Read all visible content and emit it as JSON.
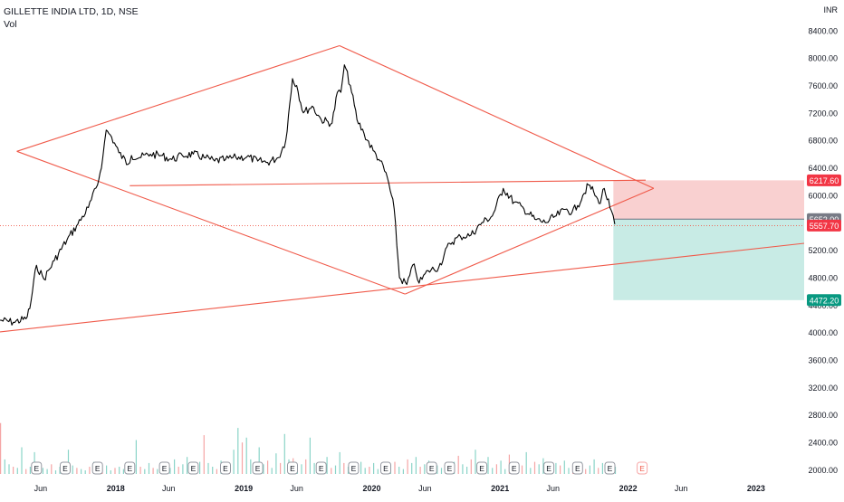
{
  "header": {
    "symbol": "GILLETTE INDIA LTD, 1D, NSE",
    "volume_label": "Vol"
  },
  "colors": {
    "candles": "#000000",
    "trendline": "#f05a4a",
    "price_line": "#f05a4a",
    "stop_zone": "#f9d0d0",
    "target_zone": "#c8ebe5",
    "stop_tag": "#f23645",
    "target_tag": "#089981",
    "entry_tag": "#787b86",
    "volume_up": "#8ad4c8",
    "volume_down": "#f5a5a5"
  },
  "chart_data": {
    "type": "line",
    "title": "GILLETTE INDIA LTD, 1D, NSE",
    "currency": "INR",
    "price_axis": {
      "ticks": [
        8400,
        8000,
        7600,
        7200,
        6800,
        6400,
        6000,
        5600,
        5200,
        4800,
        4400,
        4000,
        3600,
        3200,
        2800,
        2400,
        2000
      ],
      "ylim": [
        1860,
        8740
      ],
      "grid": false
    },
    "time_axis": {
      "ticks": [
        "Jun",
        "2018",
        "Jun",
        "2019",
        "Jun",
        "2020",
        "Jun",
        "2021",
        "Jun",
        "2022",
        "Jun",
        "2023"
      ],
      "tick_dates": [
        "2017-06-01",
        "2018-01-01",
        "2018-06-01",
        "2019-01-01",
        "2019-06-01",
        "2020-01-01",
        "2020-06-01",
        "2021-01-01",
        "2021-06-01",
        "2022-01-01",
        "2022-06-01",
        "2023-01-01"
      ],
      "xlim": [
        "2017-02-05",
        "2023-05-18"
      ]
    },
    "series": [
      {
        "name": "",
        "type": "line",
        "x": [
          "2017-02-05",
          "2017-03-15",
          "2017-04-20",
          "2017-05-01",
          "2017-05-20",
          "2017-06-10",
          "2017-07-10",
          "2017-08-15",
          "2017-09-15",
          "2017-10-15",
          "2017-11-10",
          "2017-11-25",
          "2017-12-05",
          "2017-12-20",
          "2018-01-10",
          "2018-02-05",
          "2018-02-15",
          "2018-03-10",
          "2018-04-10",
          "2018-05-10",
          "2018-06-10",
          "2018-07-10",
          "2018-08-10",
          "2018-09-10",
          "2018-10-10",
          "2018-11-10",
          "2018-12-10",
          "2019-01-10",
          "2019-02-10",
          "2019-03-10",
          "2019-04-10",
          "2019-05-01",
          "2019-05-20",
          "2019-06-01",
          "2019-06-20",
          "2019-07-15",
          "2019-08-10",
          "2019-09-10",
          "2019-09-25",
          "2019-10-05",
          "2019-10-15",
          "2019-11-01",
          "2019-11-20",
          "2019-12-10",
          "2020-01-05",
          "2020-01-25",
          "2020-02-15",
          "2020-03-05",
          "2020-03-20",
          "2020-04-10",
          "2020-05-01",
          "2020-05-15",
          "2020-06-10",
          "2020-07-10",
          "2020-08-10",
          "2020-09-10",
          "2020-10-10",
          "2020-11-10",
          "2020-12-10",
          "2021-01-10",
          "2021-02-10",
          "2021-03-10",
          "2021-04-10",
          "2021-05-10",
          "2021-06-10",
          "2021-07-10",
          "2021-07-25",
          "2021-08-10",
          "2021-08-25",
          "2021-09-10",
          "2021-09-25",
          "2021-10-10",
          "2021-10-25",
          "2021-11-10",
          "2021-11-24"
        ],
        "y": [
          4180,
          4150,
          4200,
          4350,
          4980,
          4780,
          5050,
          5350,
          5580,
          5820,
          6150,
          6550,
          6950,
          6850,
          6620,
          6450,
          6580,
          6550,
          6600,
          6580,
          6520,
          6580,
          6600,
          6550,
          6500,
          6520,
          6550,
          6560,
          6500,
          6480,
          6550,
          6800,
          7700,
          7600,
          7200,
          7300,
          7100,
          7050,
          7500,
          7500,
          7900,
          7600,
          7100,
          6900,
          6650,
          6500,
          6250,
          5800,
          4800,
          4700,
          5000,
          4720,
          4900,
          4950,
          5300,
          5400,
          5420,
          5600,
          5700,
          6100,
          5900,
          5800,
          5650,
          5600,
          5700,
          5800,
          5750,
          5850,
          6000,
          6150,
          6050,
          5880,
          6100,
          5820,
          5580
        ]
      }
    ],
    "volume": {
      "ylim": [
        0,
        100
      ],
      "values": [
        42,
        12,
        8,
        6,
        5,
        22,
        4,
        6,
        18,
        10,
        5,
        4,
        8,
        3,
        6,
        4,
        20,
        7,
        5,
        4,
        3,
        6,
        10,
        5,
        4,
        7,
        3,
        5,
        6,
        4,
        8,
        5,
        28,
        6,
        4,
        9,
        5,
        4,
        7,
        3,
        5,
        12,
        6,
        8,
        14,
        5,
        4,
        10,
        32,
        9,
        6,
        4,
        11,
        7,
        5,
        20,
        38,
        26,
        30,
        12,
        9,
        22,
        8,
        11,
        5,
        17,
        9,
        33,
        12,
        13,
        7,
        8,
        12,
        30,
        9,
        6,
        8,
        14,
        5,
        7,
        18,
        9,
        6,
        4,
        7,
        10,
        5,
        6,
        9,
        4,
        7,
        5,
        8,
        10,
        6,
        4,
        12,
        9,
        14,
        6,
        8,
        11,
        4,
        7,
        5,
        9,
        3,
        10,
        15,
        8,
        6,
        12,
        20,
        7,
        9,
        14,
        5,
        8,
        11,
        4,
        16,
        6,
        9,
        7,
        18,
        5,
        10,
        8,
        13,
        6,
        4,
        9,
        7,
        11,
        5,
        8,
        6,
        10,
        4,
        7,
        12,
        5,
        9,
        3,
        8,
        6
      ]
    },
    "earnings_markers": [
      "2017-05-20",
      "2017-08-10",
      "2017-11-10",
      "2018-02-10",
      "2018-05-20",
      "2018-08-10",
      "2018-11-10",
      "2019-02-10",
      "2019-05-20",
      "2019-08-10",
      "2019-11-10",
      "2020-02-10",
      "2020-06-20",
      "2020-08-10",
      "2020-11-10",
      "2021-02-10",
      "2021-05-20",
      "2021-08-10",
      "2021-11-10",
      "2022-02-10"
    ],
    "earnings_label": "E",
    "drawings": {
      "trendlines": [
        {
          "x": [
            "2017-02-05",
            "2023-05-18"
          ],
          "y": [
            4010,
            5300
          ]
        },
        {
          "x": [
            "2017-03-25",
            "2019-10-01"
          ],
          "y": [
            6640,
            8180
          ]
        },
        {
          "x": [
            "2017-03-25",
            "2020-04-05"
          ],
          "y": [
            6640,
            4560
          ]
        },
        {
          "x": [
            "2019-10-01",
            "2022-03-15"
          ],
          "y": [
            8180,
            6100
          ]
        },
        {
          "x": [
            "2020-04-05",
            "2022-03-15"
          ],
          "y": [
            4560,
            6100
          ]
        },
        {
          "x": [
            "2018-02-10",
            "2022-02-20"
          ],
          "y": [
            6140,
            6220
          ]
        }
      ],
      "long_position": {
        "start": "2021-11-20",
        "end": "2023-05-18",
        "entry": 5652.0,
        "stop": 6217.6,
        "target": 4472.2
      },
      "last_price_line": 5557.7
    },
    "price_tags": [
      {
        "label": "6217.60",
        "value": 6217.6,
        "role": "stop"
      },
      {
        "label": "5652.00",
        "value": 5652.0,
        "role": "entry"
      },
      {
        "label": "5557.70",
        "value": 5557.7,
        "role": "last"
      },
      {
        "label": "4472.20",
        "value": 4472.2,
        "role": "target"
      }
    ]
  }
}
